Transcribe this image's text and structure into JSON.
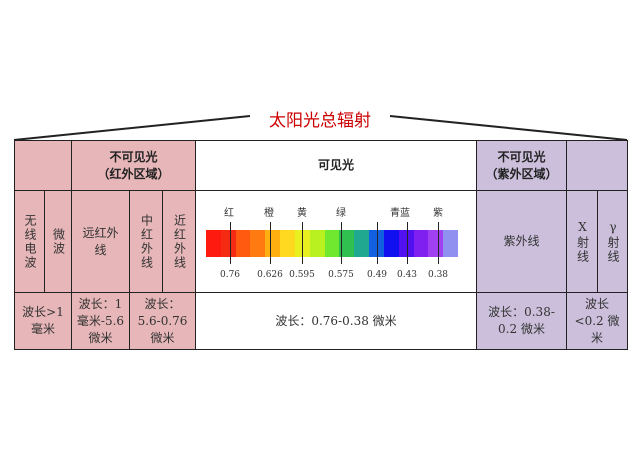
{
  "title": "太阳光总辐射",
  "infrared": {
    "header": "不可见光\n（红外区域）",
    "radio": "无线电波",
    "microwave": "微波",
    "far": "远红外线",
    "mid": "中红外线",
    "near": "近红外线",
    "radio_wl": "波长>1毫米",
    "far_wl": "波长：1毫米-5.6微米",
    "midnear_wl": "波长：5.6-0.76微米"
  },
  "visible": {
    "header": "可见光",
    "wl": "波长：0.76-0.38 微米",
    "colors": [
      "红",
      "橙",
      "黄",
      "绿",
      "青蓝",
      "紫"
    ],
    "ticks": [
      "0.76",
      "0.626",
      "0.595",
      "0.575",
      "0.49",
      "0.43",
      "0.38"
    ],
    "spectrum": [
      "#ff1a10",
      "#f52a12",
      "#ff5a10",
      "#ff7a10",
      "#ffb010",
      "#ffd820",
      "#e8f020",
      "#b8f020",
      "#70e830",
      "#30c050",
      "#20a890",
      "#1060e0",
      "#1010f0",
      "#5010f0",
      "#8020f0",
      "#a040f0",
      "#9090f0"
    ]
  },
  "ultraviolet": {
    "header": "不可见光\n（紫外区域）",
    "uv": "紫外线",
    "x": "X射线",
    "gamma": "γ射线",
    "uv_wl": "波长：0.38-0.2 微米",
    "xg_wl": "波长<0.2 微米"
  },
  "colors": {
    "infrared": "#e6b6b8",
    "ultraviolet": "#cbbfdb",
    "title": "#cc0000"
  }
}
